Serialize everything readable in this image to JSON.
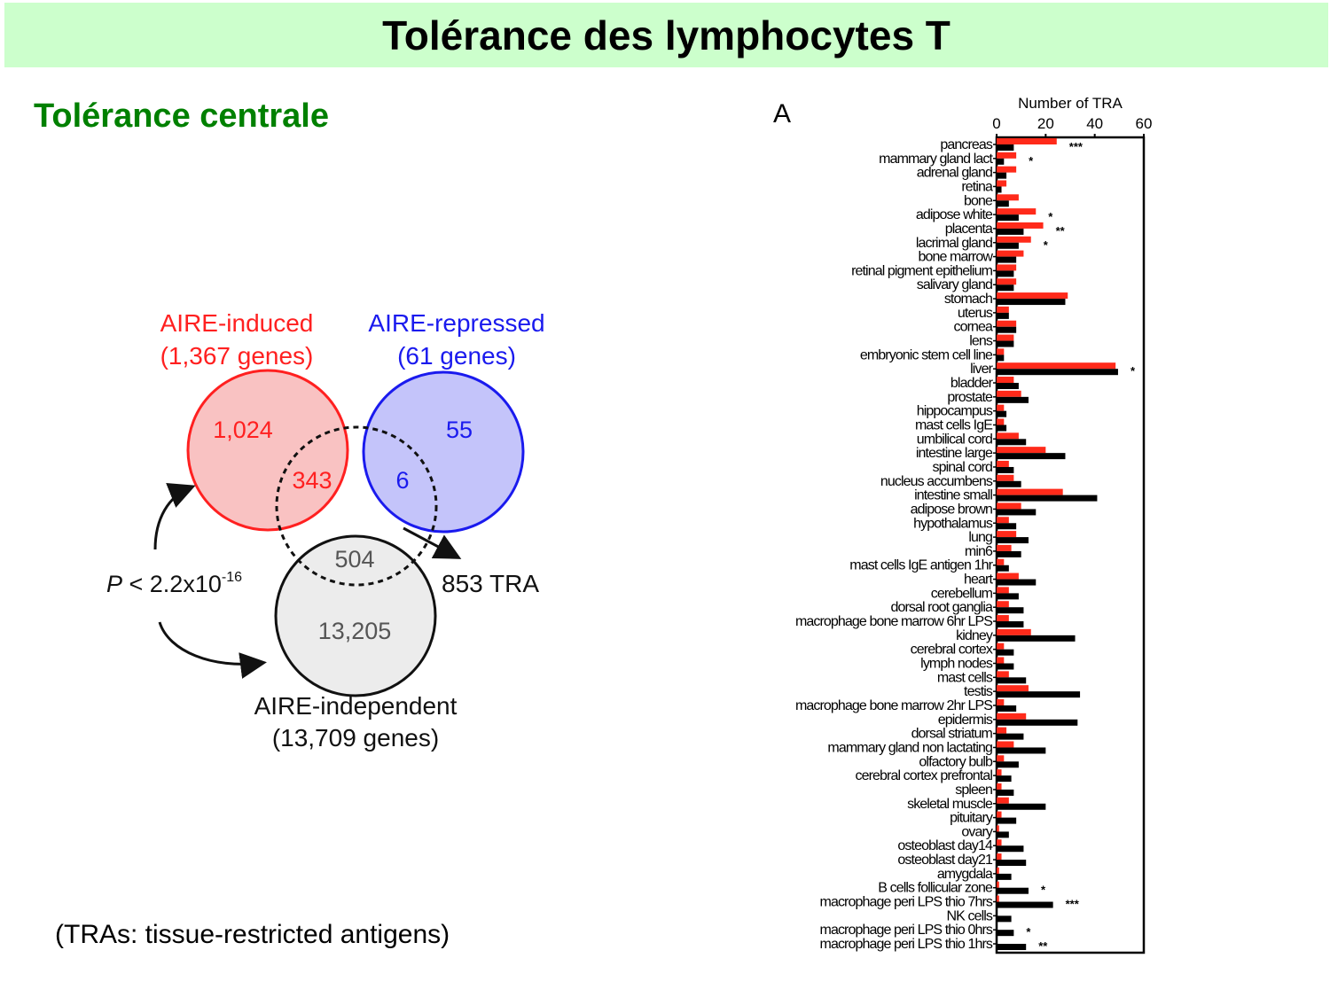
{
  "slide": {
    "title": "Tolérance des lymphocytes T",
    "subtitle": "Tolérance centrale",
    "footnote": "(TRAs: tissue-restricted antigens)"
  },
  "venn": {
    "induced_label": "AIRE-induced",
    "induced_count": "(1,367 genes)",
    "repressed_label": "AIRE-repressed",
    "repressed_count": "(61 genes)",
    "independent_label": "AIRE-independent",
    "independent_count": "(13,709 genes)",
    "induced_only": "1,024",
    "induced_tra": "343",
    "repressed_only": "55",
    "repressed_tra": "6",
    "independent_tra": "504",
    "independent_only": "13,205",
    "tra_total": "853 TRA",
    "p_value_prefix": "P",
    "p_value_main": " < 2.2x10",
    "p_value_exp": "-16",
    "colors": {
      "induced": "#ff2020",
      "induced_fill": "#f9c2c2",
      "repressed": "#1a1aee",
      "repressed_fill": "#c4c4fa",
      "independent_fill": "#ececec"
    }
  },
  "chart_data": {
    "type": "bar",
    "orientation": "horizontal",
    "panel_label": "A",
    "title": "Number of TRA",
    "xlim": [
      0,
      60
    ],
    "xticks": [
      0,
      20,
      40,
      60
    ],
    "categories": [
      "pancreas",
      "mammary gland lact",
      "adrenal gland",
      "retina",
      "bone",
      "adipose white",
      "placenta",
      "lacrimal gland",
      "bone marrow",
      "retinal pigment epithelium",
      "salivary gland",
      "stomach",
      "uterus",
      "cornea",
      "lens",
      "embryonic stem cell line",
      "liver",
      "bladder",
      "prostate",
      "hippocampus",
      "mast cells IgE",
      "umbilical cord",
      "intestine large",
      "spinal cord",
      "nucleus accumbens",
      "intestine small",
      "adipose brown",
      "hypothalamus",
      "lung",
      "min6",
      "mast cells IgE antigen 1hr",
      "heart",
      "cerebellum",
      "dorsal root ganglia",
      "macrophage bone marrow 6hr LPS",
      "kidney",
      "cerebral cortex",
      "lymph nodes",
      "mast cells",
      "testis",
      "macrophage bone marrow 2hr LPS",
      "epidermis",
      "dorsal striatum",
      "mammary gland non lactating",
      "olfactory bulb",
      "cerebral cortex prefrontal",
      "spleen",
      "skeletal muscle",
      "pituitary",
      "ovary",
      "osteoblast day14",
      "osteoblast day21",
      "amygdala",
      "B cells follicular zone",
      "macrophage peri LPS thio 7hrs",
      "NK cells",
      "macrophage peri LPS thio 0hrs",
      "macrophage peri LPS thio 1hrs"
    ],
    "series": [
      {
        "name": "AIRE-induced",
        "color": "#ff2a1a",
        "values": [
          24.5,
          8,
          8,
          4,
          9,
          16,
          19,
          14,
          11,
          8,
          8,
          29,
          5,
          8,
          7,
          3,
          48.5,
          7,
          10,
          3,
          3,
          9,
          20,
          5,
          7,
          27,
          10,
          5,
          8,
          6,
          3,
          9,
          5,
          5,
          5,
          14,
          3,
          3,
          5,
          13,
          3,
          12,
          4,
          7,
          3,
          2,
          2,
          5,
          2,
          1,
          2,
          2,
          1,
          1,
          1,
          0,
          0,
          0
        ]
      },
      {
        "name": "AIRE-independent",
        "color": "#000000",
        "values": [
          7,
          3,
          4,
          2,
          5,
          9,
          11,
          9,
          8,
          7,
          7,
          28,
          5,
          8,
          7,
          3,
          49.5,
          9,
          13,
          4,
          4,
          12,
          28,
          7,
          10,
          41,
          16,
          8,
          13,
          10,
          5,
          16,
          9,
          11,
          11,
          32,
          7,
          7,
          12,
          34,
          8,
          33,
          11,
          20,
          9,
          6,
          7,
          20,
          8,
          5,
          11,
          12,
          6,
          13,
          23,
          6,
          7,
          12
        ]
      }
    ],
    "significance": {
      "pancreas": "***",
      "mammary gland lact": "*",
      "adipose white": "*",
      "placenta": "**",
      "lacrimal gland": "*",
      "liver": "*",
      "B cells follicular zone": "*",
      "macrophage peri LPS thio 7hrs": "***",
      "macrophage peri LPS thio 0hrs": "*",
      "macrophage peri LPS thio 1hrs": "**"
    },
    "grid": false
  }
}
